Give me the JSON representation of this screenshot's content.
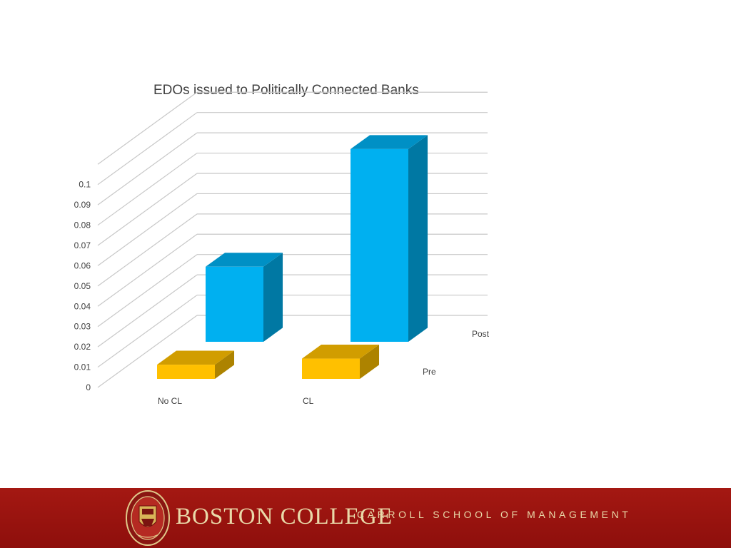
{
  "chart_data": {
    "type": "bar",
    "title": "EDOs issued to Politically Connected Banks",
    "categories": [
      "No CL",
      "CL"
    ],
    "series": [
      {
        "name": "Pre",
        "values": [
          0.007,
          0.01
        ],
        "color": "#ffc000"
      },
      {
        "name": "Post",
        "values": [
          0.037,
          0.095
        ],
        "color": "#00b0f0"
      }
    ],
    "ylim": [
      0,
      0.1
    ],
    "yticks": [
      "0",
      "0.01",
      "0.02",
      "0.03",
      "0.04",
      "0.05",
      "0.06",
      "0.07",
      "0.08",
      "0.09",
      "0.1"
    ],
    "grid": true,
    "style": "3d-column"
  },
  "footer": {
    "institution": "BOSTON COLLEGE",
    "school": "CARROLL SCHOOL OF MANAGEMENT",
    "seal_icon": "boston-college-seal-icon",
    "background_color": "#9b1410",
    "text_color": "#e9d9a9"
  }
}
